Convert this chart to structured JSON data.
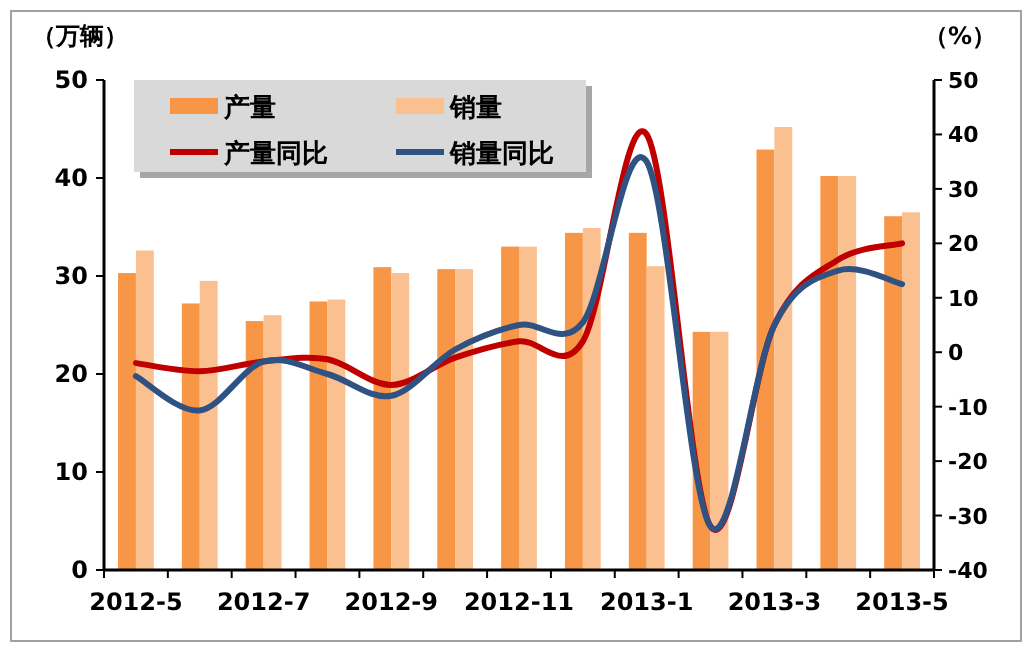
{
  "chart_data": {
    "type": "bar",
    "ylabel": "（万辆）",
    "y2label": "（%）",
    "categories": [
      "2012-5",
      null,
      "2012-7",
      null,
      "2012-9",
      null,
      "2012-11",
      null,
      "2013-1",
      null,
      "2013-3",
      null,
      "2013-5"
    ],
    "series": [
      {
        "name": "产量",
        "color": "#f79646",
        "values": [
          30.3,
          27.2,
          25.4,
          27.4,
          30.9,
          30.7,
          33.0,
          34.4,
          34.4,
          24.3,
          42.9,
          40.2,
          36.1
        ]
      },
      {
        "name": "销量",
        "color": "#fac090",
        "values": [
          32.6,
          29.5,
          26.0,
          27.6,
          30.3,
          30.7,
          33.0,
          34.9,
          31.0,
          24.3,
          45.2,
          40.2,
          36.5
        ]
      },
      {
        "name": "产量同比",
        "type": "line",
        "axis": "y2",
        "color": "#c00000",
        "values": [
          -2,
          -3.5,
          -1.7,
          -1.3,
          -6,
          -1,
          2,
          2,
          40,
          -32,
          5,
          17,
          20
        ]
      },
      {
        "name": "销量同比",
        "type": "line",
        "axis": "y2",
        "color": "#2f5282",
        "values": [
          -4.4,
          -10.7,
          -1.7,
          -4,
          -8,
          0.5,
          5,
          5.5,
          35,
          -32,
          5,
          15,
          12.5
        ]
      }
    ],
    "ylim": [
      0,
      50
    ],
    "yticks": [
      0,
      10,
      20,
      30,
      40,
      50
    ],
    "y2lim": [
      -40,
      50
    ],
    "y2ticks": [
      -40,
      -30,
      -20,
      -10,
      0,
      10,
      20,
      30,
      40,
      50
    ],
    "legend": "top left",
    "grid": false
  }
}
